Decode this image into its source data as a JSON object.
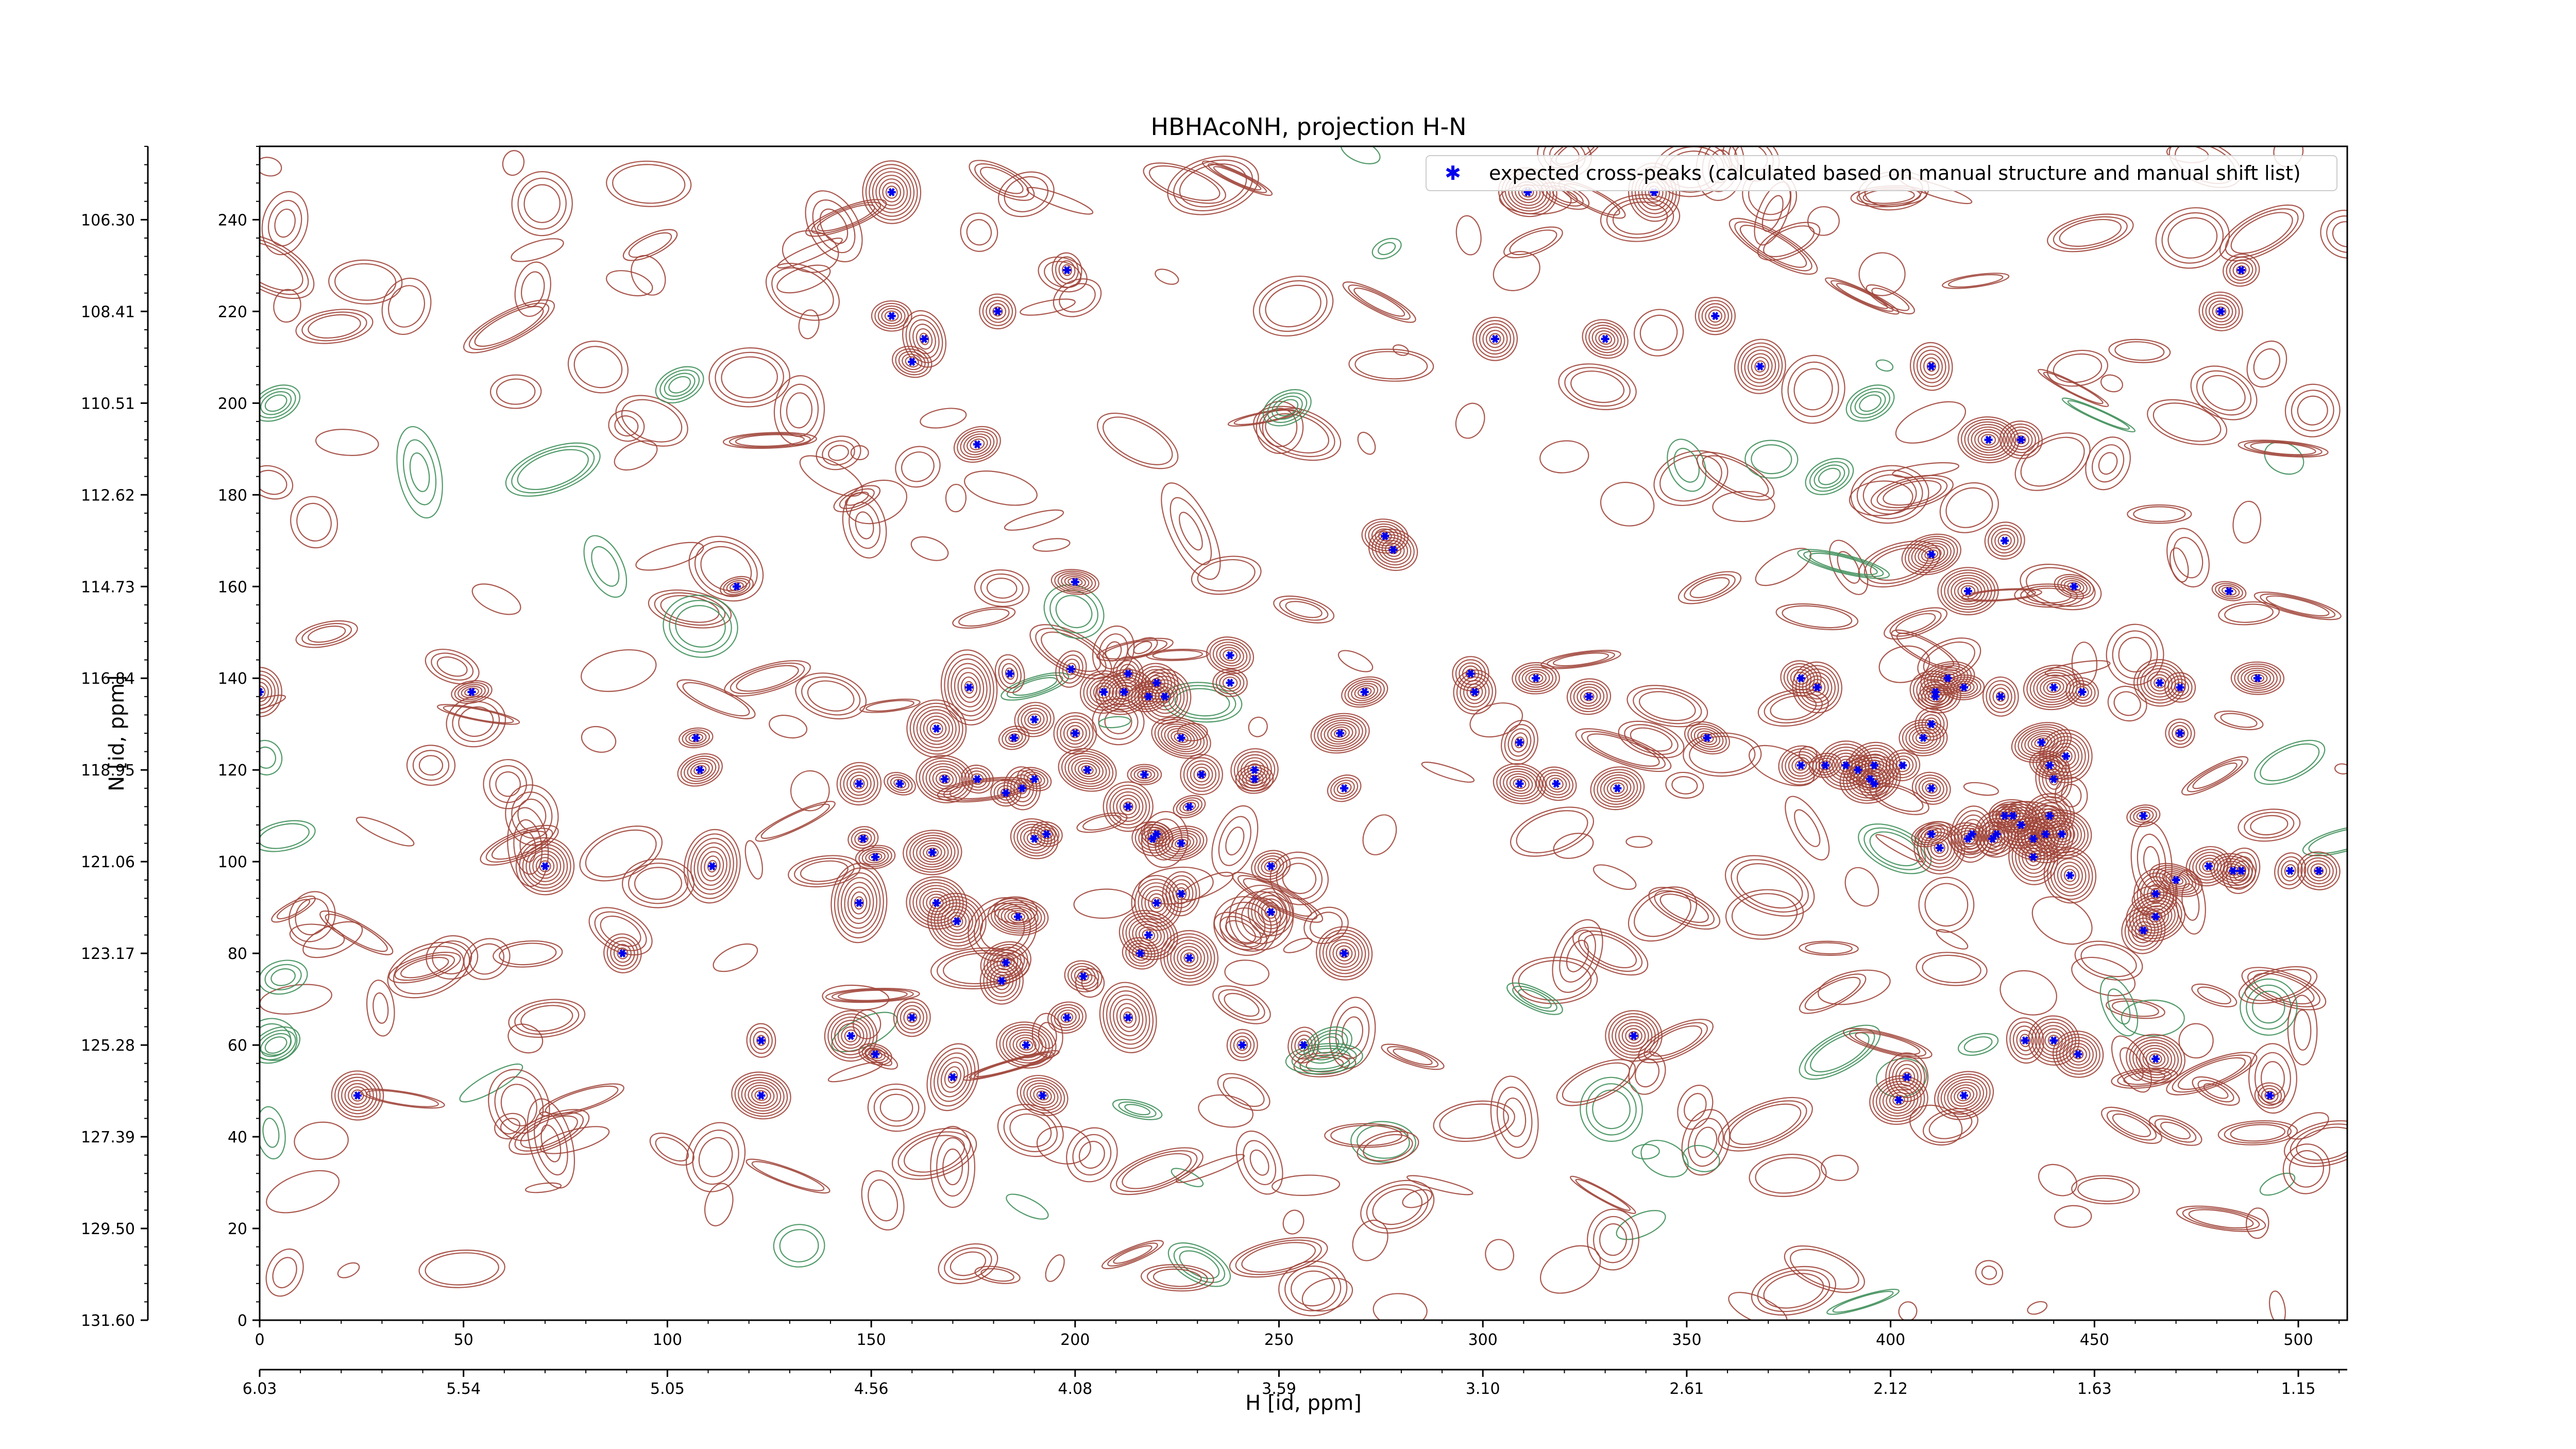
{
  "chart_data": {
    "type": "scatter",
    "title": "HBHAcoNH, projection H-N",
    "xlabel": "H [id, ppm]",
    "ylabel": "N [id, ppm]",
    "xlim": [
      0,
      512
    ],
    "ylim": [
      0,
      256
    ],
    "x_index_ticks": [
      "0",
      "50",
      "100",
      "150",
      "200",
      "250",
      "300",
      "350",
      "400",
      "450",
      "500"
    ],
    "x_ppm_ticks": [
      "6.03",
      "5.54",
      "5.05",
      "4.56",
      "4.08",
      "3.59",
      "3.10",
      "2.61",
      "2.12",
      "1.63",
      "1.15"
    ],
    "y_index_ticks": [
      "0",
      "20",
      "40",
      "60",
      "80",
      "100",
      "120",
      "140",
      "160",
      "180",
      "200",
      "220",
      "240"
    ],
    "y_ppm_ticks": [
      "131.60",
      "129.50",
      "127.39",
      "125.28",
      "123.17",
      "121.06",
      "118.95",
      "116.84",
      "114.73",
      "112.62",
      "110.51",
      "108.41",
      "106.30"
    ],
    "legend": {
      "label": "expected cross-peaks (calculated based on manual structure and manual shift list)",
      "placement": "upper-right"
    },
    "colors": {
      "positive_contour": "#a0453a",
      "negative_contour": "#3f8f5a",
      "peak": "#0000ee"
    },
    "series": [
      {
        "name": "expected cross-peaks (calculated based on manual structure and manual shift list)",
        "points": [
          [
            155,
            246
          ],
          [
            198,
            229
          ],
          [
            155,
            219
          ],
          [
            181,
            220
          ],
          [
            163,
            214
          ],
          [
            160,
            209
          ],
          [
            176,
            191
          ],
          [
            303,
            214
          ],
          [
            330,
            214
          ],
          [
            342,
            246
          ],
          [
            311,
            246
          ],
          [
            357,
            219
          ],
          [
            368,
            208
          ],
          [
            410,
            208
          ],
          [
            486,
            229
          ],
          [
            481,
            220
          ],
          [
            424,
            192
          ],
          [
            432,
            192
          ],
          [
            276,
            171
          ],
          [
            278,
            168
          ],
          [
            410,
            167
          ],
          [
            419,
            159
          ],
          [
            428,
            170
          ],
          [
            445,
            160
          ],
          [
            483,
            159
          ],
          [
            200,
            161
          ],
          [
            117,
            160
          ],
          [
            0,
            137
          ],
          [
            52,
            137
          ],
          [
            107,
            127
          ],
          [
            108,
            120
          ],
          [
            174,
            138
          ],
          [
            184,
            141
          ],
          [
            199,
            142
          ],
          [
            213,
            141
          ],
          [
            220,
            139
          ],
          [
            212,
            137
          ],
          [
            218,
            136
          ],
          [
            222,
            136
          ],
          [
            238,
            145
          ],
          [
            238,
            139
          ],
          [
            185,
            127
          ],
          [
            200,
            128
          ],
          [
            207,
            137
          ],
          [
            166,
            129
          ],
          [
            190,
            131
          ],
          [
            226,
            127
          ],
          [
            231,
            119
          ],
          [
            244,
            120
          ],
          [
            217,
            119
          ],
          [
            203,
            120
          ],
          [
            190,
            118
          ],
          [
            187,
            116
          ],
          [
            176,
            118
          ],
          [
            183,
            115
          ],
          [
            168,
            118
          ],
          [
            157,
            117
          ],
          [
            147,
            117
          ],
          [
            271,
            137
          ],
          [
            265,
            128
          ],
          [
            244,
            118
          ],
          [
            266,
            116
          ],
          [
            297,
            141
          ],
          [
            313,
            140
          ],
          [
            298,
            137
          ],
          [
            309,
            126
          ],
          [
            326,
            136
          ],
          [
            355,
            127
          ],
          [
            309,
            117
          ],
          [
            318,
            117
          ],
          [
            333,
            116
          ],
          [
            378,
            121
          ],
          [
            384,
            121
          ],
          [
            389,
            121
          ],
          [
            392,
            120
          ],
          [
            396,
            121
          ],
          [
            395,
            118
          ],
          [
            403,
            121
          ],
          [
            396,
            117
          ],
          [
            410,
            116
          ],
          [
            378,
            140
          ],
          [
            382,
            138
          ],
          [
            414,
            140
          ],
          [
            411,
            137
          ],
          [
            411,
            136
          ],
          [
            418,
            138
          ],
          [
            427,
            136
          ],
          [
            410,
            130
          ],
          [
            408,
            127
          ],
          [
            440,
            138
          ],
          [
            447,
            137
          ],
          [
            471,
            138
          ],
          [
            466,
            139
          ],
          [
            471,
            128
          ],
          [
            490,
            140
          ],
          [
            440,
            118
          ],
          [
            439,
            121
          ],
          [
            443,
            123
          ],
          [
            437,
            126
          ],
          [
            435,
            105
          ],
          [
            435,
            101
          ],
          [
            412,
            103
          ],
          [
            420,
            106
          ],
          [
            410,
            106
          ],
          [
            425,
            105
          ],
          [
            419,
            105
          ],
          [
            428,
            110
          ],
          [
            430,
            110
          ],
          [
            438,
            106
          ],
          [
            462,
            110
          ],
          [
            426,
            106
          ],
          [
            442,
            106
          ],
          [
            432,
            108
          ],
          [
            439,
            110
          ],
          [
            444,
            97
          ],
          [
            465,
            93
          ],
          [
            462,
            85
          ],
          [
            465,
            88
          ],
          [
            470,
            96
          ],
          [
            478,
            99
          ],
          [
            498,
            98
          ],
          [
            486,
            98
          ],
          [
            484,
            98
          ],
          [
            505,
            98
          ],
          [
            148,
            105
          ],
          [
            151,
            101
          ],
          [
            165,
            102
          ],
          [
            147,
            91
          ],
          [
            166,
            91
          ],
          [
            171,
            87
          ],
          [
            186,
            88
          ],
          [
            183,
            78
          ],
          [
            182,
            74
          ],
          [
            202,
            75
          ],
          [
            193,
            106
          ],
          [
            190,
            105
          ],
          [
            213,
            112
          ],
          [
            220,
            106
          ],
          [
            219,
            105
          ],
          [
            226,
            104
          ],
          [
            228,
            112
          ],
          [
            220,
            91
          ],
          [
            226,
            93
          ],
          [
            218,
            84
          ],
          [
            228,
            79
          ],
          [
            216,
            80
          ],
          [
            248,
            99
          ],
          [
            248,
            89
          ],
          [
            266,
            80
          ],
          [
            70,
            99
          ],
          [
            111,
            99
          ],
          [
            89,
            80
          ],
          [
            123,
            61
          ],
          [
            145,
            62
          ],
          [
            151,
            58
          ],
          [
            160,
            66
          ],
          [
            170,
            53
          ],
          [
            188,
            60
          ],
          [
            198,
            66
          ],
          [
            192,
            49
          ],
          [
            213,
            66
          ],
          [
            241,
            60
          ],
          [
            256,
            60
          ],
          [
            337,
            62
          ],
          [
            404,
            53
          ],
          [
            402,
            48
          ],
          [
            418,
            49
          ],
          [
            433,
            61
          ],
          [
            440,
            61
          ],
          [
            446,
            58
          ],
          [
            465,
            57
          ],
          [
            24,
            49
          ],
          [
            123,
            49
          ],
          [
            493,
            49
          ]
        ]
      }
    ]
  }
}
